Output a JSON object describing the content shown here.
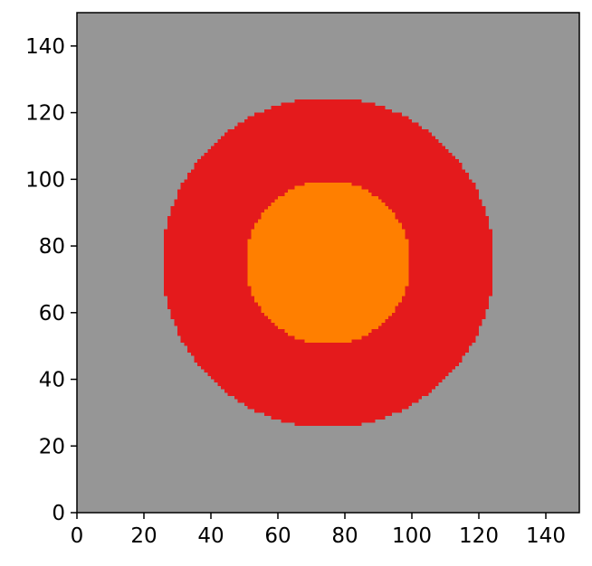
{
  "chart_data": {
    "type": "heatmap",
    "title": "",
    "xlabel": "",
    "ylabel": "",
    "xlim": [
      0,
      150
    ],
    "ylim": [
      0,
      150
    ],
    "grid": false,
    "x_ticks": [
      0,
      20,
      40,
      60,
      80,
      100,
      120,
      140
    ],
    "y_ticks": [
      0,
      20,
      40,
      60,
      80,
      100,
      120,
      140
    ],
    "x_tick_labels": [
      "0",
      "20",
      "40",
      "60",
      "80",
      "100",
      "120",
      "140"
    ],
    "y_tick_labels": [
      "0",
      "20",
      "40",
      "60",
      "80",
      "100",
      "120",
      "140"
    ],
    "regions": [
      {
        "shape": "rectangle",
        "fill": "background",
        "x": [
          0,
          150
        ],
        "y": [
          0,
          150
        ],
        "color": "#969696"
      },
      {
        "shape": "disc",
        "fill": "outer-ring",
        "center": [
          75,
          75
        ],
        "radius": 49.5,
        "color": "#e41a1c"
      },
      {
        "shape": "disc",
        "fill": "inner-disc",
        "center": [
          75,
          75
        ],
        "radius": 24.5,
        "color": "#ff7f00"
      }
    ]
  }
}
